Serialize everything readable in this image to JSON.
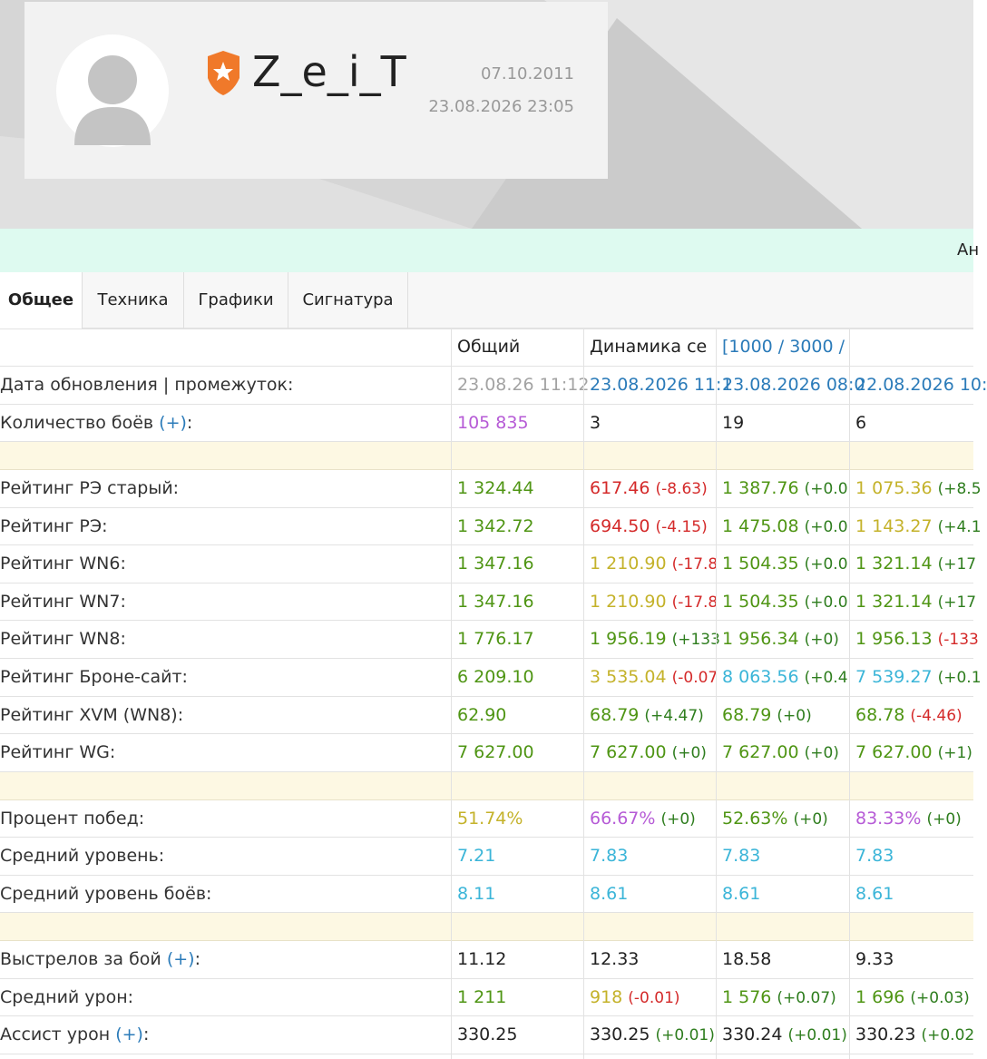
{
  "profile": {
    "name": "Z_e_i_T",
    "registered": "07.10.2011",
    "last_seen": "23.08.2026 23:05"
  },
  "banner": {
    "text": "Ан"
  },
  "tabs": [
    "Общее",
    "Техника",
    "Графики",
    "Сигнатура"
  ],
  "table": {
    "header": [
      "Общий",
      "Динамика се",
      "[1000 / 3000 /"
    ],
    "groups": [
      {
        "rows": [
          {
            "label": "Дата обновления | промежуток:",
            "cells": [
              {
                "text": "23.08.26 11:12",
                "color": "#a3a3a3"
              },
              {
                "text": "23.08.2026 11:1",
                "color": "#2b7bb9"
              },
              {
                "text": "23.08.2026 08:0",
                "color": "#2b7bb9"
              },
              {
                "text": "22.08.2026 10:",
                "color": "#2b7bb9"
              }
            ]
          },
          {
            "label": "Количество боёв ",
            "link": "(+)",
            "tail": ":",
            "cells": [
              {
                "text": "105 835",
                "color": "#b65bd6"
              },
              {
                "text": "3",
                "color": "#222222"
              },
              {
                "text": "19",
                "color": "#222222"
              },
              {
                "text": "6",
                "color": "#222222"
              }
            ]
          }
        ]
      },
      {
        "rows": [
          {
            "label": "Рейтинг РЭ старый:",
            "cells": [
              {
                "text": "1 324.44",
                "color": "#4f9514"
              },
              {
                "text": "617.46",
                "color": "#d42a2a",
                "delta": "(-8.63)",
                "delta_color": "#d42a2a"
              },
              {
                "text": "1 387.76",
                "color": "#4f9514",
                "delta": "(+0.0",
                "delta_color": "#2e7d1e"
              },
              {
                "text": "1 075.36",
                "color": "#c4b22a",
                "delta": "(+8.5",
                "delta_color": "#2e7d1e"
              }
            ]
          },
          {
            "label": "Рейтинг РЭ:",
            "cells": [
              {
                "text": "1 342.72",
                "color": "#4f9514"
              },
              {
                "text": "694.50",
                "color": "#d42a2a",
                "delta": "(-4.15)",
                "delta_color": "#d42a2a"
              },
              {
                "text": "1 475.08",
                "color": "#4f9514",
                "delta": "(+0.0",
                "delta_color": "#2e7d1e"
              },
              {
                "text": "1 143.27",
                "color": "#c4b22a",
                "delta": "(+4.1",
                "delta_color": "#2e7d1e"
              }
            ]
          },
          {
            "label": "Рейтинг WN6:",
            "cells": [
              {
                "text": "1 347.16",
                "color": "#4f9514"
              },
              {
                "text": "1 210.90",
                "color": "#c4b22a",
                "delta": "(-17.8",
                "delta_color": "#d42a2a"
              },
              {
                "text": "1 504.35",
                "color": "#4f9514",
                "delta": "(+0.0",
                "delta_color": "#2e7d1e"
              },
              {
                "text": "1 321.14",
                "color": "#4f9514",
                "delta": "(+17",
                "delta_color": "#2e7d1e"
              }
            ]
          },
          {
            "label": "Рейтинг WN7:",
            "cells": [
              {
                "text": "1 347.16",
                "color": "#4f9514"
              },
              {
                "text": "1 210.90",
                "color": "#c4b22a",
                "delta": "(-17.8",
                "delta_color": "#d42a2a"
              },
              {
                "text": "1 504.35",
                "color": "#4f9514",
                "delta": "(+0.0",
                "delta_color": "#2e7d1e"
              },
              {
                "text": "1 321.14",
                "color": "#4f9514",
                "delta": "(+17",
                "delta_color": "#2e7d1e"
              }
            ]
          },
          {
            "label": "Рейтинг WN8:",
            "cells": [
              {
                "text": "1 776.17",
                "color": "#4f9514"
              },
              {
                "text": "1 956.19",
                "color": "#4f9514",
                "delta": "(+133",
                "delta_color": "#2e7d1e"
              },
              {
                "text": "1 956.34",
                "color": "#4f9514",
                "delta": "(+0)",
                "delta_color": "#2e7d1e"
              },
              {
                "text": "1 956.13",
                "color": "#4f9514",
                "delta": "(-133",
                "delta_color": "#d42a2a"
              }
            ]
          },
          {
            "label": "Рейтинг Броне-сайт:",
            "cells": [
              {
                "text": "6 209.10",
                "color": "#4f9514"
              },
              {
                "text": "3 535.04",
                "color": "#c4b22a",
                "delta": "(-0.07",
                "delta_color": "#d42a2a"
              },
              {
                "text": "8 063.56",
                "color": "#3bb5d8",
                "delta": "(+0.4",
                "delta_color": "#2e7d1e"
              },
              {
                "text": "7 539.27",
                "color": "#3bb5d8",
                "delta": "(+0.1",
                "delta_color": "#2e7d1e"
              }
            ]
          },
          {
            "label": "Рейтинг XVM (WN8):",
            "cells": [
              {
                "text": "62.90",
                "color": "#4f9514"
              },
              {
                "text": "68.79",
                "color": "#4f9514",
                "delta": "(+4.47)",
                "delta_color": "#2e7d1e"
              },
              {
                "text": "68.79",
                "color": "#4f9514",
                "delta": "(+0)",
                "delta_color": "#2e7d1e"
              },
              {
                "text": "68.78",
                "color": "#4f9514",
                "delta": "(-4.46)",
                "delta_color": "#d42a2a"
              }
            ]
          },
          {
            "label": "Рейтинг WG:",
            "cells": [
              {
                "text": "7 627.00",
                "color": "#4f9514"
              },
              {
                "text": "7 627.00",
                "color": "#4f9514",
                "delta": "(+0)",
                "delta_color": "#2e7d1e"
              },
              {
                "text": "7 627.00",
                "color": "#4f9514",
                "delta": "(+0)",
                "delta_color": "#2e7d1e"
              },
              {
                "text": "7 627.00",
                "color": "#4f9514",
                "delta": "(+1)",
                "delta_color": "#2e7d1e"
              }
            ]
          }
        ]
      },
      {
        "rows": [
          {
            "label": "Процент побед:",
            "cells": [
              {
                "text": "51.74%",
                "color": "#c4b22a"
              },
              {
                "text": "66.67%",
                "color": "#b65bd6",
                "delta": "(+0)",
                "delta_color": "#2e7d1e"
              },
              {
                "text": "52.63%",
                "color": "#4f9514",
                "delta": "(+0)",
                "delta_color": "#2e7d1e"
              },
              {
                "text": "83.33%",
                "color": "#b65bd6",
                "delta": "(+0)",
                "delta_color": "#2e7d1e"
              }
            ]
          },
          {
            "label": "Средний уровень:",
            "cells": [
              {
                "text": "7.21",
                "color": "#3bb5d8"
              },
              {
                "text": "7.83",
                "color": "#3bb5d8"
              },
              {
                "text": "7.83",
                "color": "#3bb5d8"
              },
              {
                "text": "7.83",
                "color": "#3bb5d8"
              }
            ]
          },
          {
            "label": "Средний уровень боёв:",
            "cells": [
              {
                "text": "8.11",
                "color": "#3bb5d8"
              },
              {
                "text": "8.61",
                "color": "#3bb5d8"
              },
              {
                "text": "8.61",
                "color": "#3bb5d8"
              },
              {
                "text": "8.61",
                "color": "#3bb5d8"
              }
            ]
          }
        ]
      },
      {
        "rows": [
          {
            "label": "Выстрелов за бой ",
            "link": "(+)",
            "tail": ":",
            "cells": [
              {
                "text": "11.12",
                "color": "#222222"
              },
              {
                "text": "12.33",
                "color": "#222222"
              },
              {
                "text": "18.58",
                "color": "#222222"
              },
              {
                "text": "9.33",
                "color": "#222222"
              }
            ]
          },
          {
            "label": "Средний урон:",
            "cells": [
              {
                "text": "1 211",
                "color": "#4f9514"
              },
              {
                "text": "918",
                "color": "#c4b22a",
                "delta": "(-0.01)",
                "delta_color": "#d42a2a"
              },
              {
                "text": "1 576",
                "color": "#4f9514",
                "delta": "(+0.07)",
                "delta_color": "#2e7d1e"
              },
              {
                "text": "1 696",
                "color": "#4f9514",
                "delta": "(+0.03)",
                "delta_color": "#2e7d1e"
              }
            ]
          },
          {
            "label": "Ассист урон ",
            "link": "(+)",
            "tail": ":",
            "cells": [
              {
                "text": "330.25",
                "color": "#222222"
              },
              {
                "text": "330.25",
                "color": "#222222",
                "delta": "(+0.01)",
                "delta_color": "#2e7d1e"
              },
              {
                "text": "330.24",
                "color": "#222222",
                "delta": "(+0.01)",
                "delta_color": "#2e7d1e"
              },
              {
                "text": "330.23",
                "color": "#222222",
                "delta": "(+0.02",
                "delta_color": "#2e7d1e"
              }
            ]
          }
        ]
      }
    ]
  }
}
